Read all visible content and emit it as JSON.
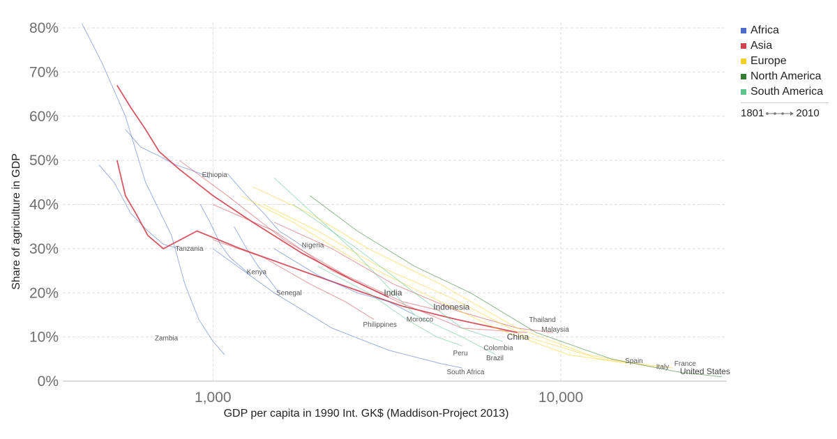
{
  "chart_data": {
    "type": "line",
    "xlabel": "GDP per capita in 1990 Int. GK$ (Maddison-Project 2013)",
    "ylabel": "Share of agriculture in GDP",
    "x_scale": "log",
    "xlim": [
      370,
      30000
    ],
    "ylim": [
      0,
      80
    ],
    "x_ticks": [
      1000,
      10000
    ],
    "x_tick_labels": [
      "1,000",
      "10,000"
    ],
    "y_ticks": [
      0,
      10,
      20,
      30,
      40,
      50,
      60,
      70,
      80
    ],
    "y_tick_labels": [
      "0%",
      "10%",
      "20%",
      "30%",
      "40%",
      "50%",
      "60%",
      "70%",
      "80%"
    ],
    "grid": true,
    "legend_position": "top-right",
    "time_range": {
      "start": "1801",
      "end": "2010"
    },
    "legend": [
      {
        "name": "Africa",
        "color": "#4c6cc8"
      },
      {
        "name": "Asia",
        "color": "#d0424f"
      },
      {
        "name": "Europe",
        "color": "#f4cf2a"
      },
      {
        "name": "North America",
        "color": "#2e7d32"
      },
      {
        "name": "South America",
        "color": "#5dc48c"
      }
    ],
    "series": [
      {
        "name": "Zambia",
        "continent": "Africa",
        "x": [
          420,
          480,
          560,
          640,
          760,
          830,
          910,
          1000,
          1080
        ],
        "y": [
          81,
          72,
          60,
          45,
          33,
          22,
          14,
          9,
          6
        ]
      },
      {
        "name": "Tanzania",
        "continent": "Africa",
        "x": [
          470,
          520,
          580,
          650,
          720,
          800
        ],
        "y": [
          49,
          45,
          38,
          34,
          31,
          30
        ]
      },
      {
        "name": "Ethiopia",
        "continent": "Africa",
        "x": [
          560,
          620,
          700,
          780,
          850,
          920,
          980
        ],
        "y": [
          57,
          53,
          51,
          49,
          48,
          47,
          46
        ]
      },
      {
        "name": "Kenya",
        "continent": "Africa",
        "x": [
          920,
          980,
          1050,
          1120,
          1200,
          1280
        ],
        "y": [
          40,
          36,
          31,
          28,
          26,
          24
        ]
      },
      {
        "name": "Nigeria",
        "continent": "Africa",
        "x": [
          1100,
          1250,
          1400,
          1550,
          1700,
          1850
        ],
        "y": [
          47,
          42,
          38,
          34,
          32,
          30
        ]
      },
      {
        "name": "Senegal",
        "continent": "Africa",
        "x": [
          1150,
          1250,
          1350,
          1450,
          1550
        ],
        "y": [
          35,
          30,
          26,
          23,
          20
        ]
      },
      {
        "name": "South Africa",
        "continent": "Africa",
        "x": [
          1000,
          1500,
          2200,
          3200,
          4500,
          5200
        ],
        "y": [
          30,
          20,
          12,
          7,
          4,
          3
        ]
      },
      {
        "name": "China",
        "continent": "Asia",
        "x": [
          530,
          560,
          600,
          650,
          720,
          900,
          1200,
          1800,
          2500,
          3500,
          5000,
          7500
        ],
        "y": [
          50,
          42,
          38,
          33,
          30,
          34,
          30,
          25,
          21,
          17,
          14,
          11
        ]
      },
      {
        "name": "India",
        "continent": "Asia",
        "x": [
          530,
          580,
          640,
          700,
          800,
          1000,
          1300,
          1800,
          2500,
          3200
        ],
        "y": [
          67,
          62,
          57,
          52,
          48,
          42,
          36,
          29,
          23,
          19
        ]
      },
      {
        "name": "Philippines",
        "continent": "Asia",
        "x": [
          1000,
          1400,
          1900,
          2400,
          2900
        ],
        "y": [
          32,
          28,
          22,
          18,
          14
        ]
      },
      {
        "name": "Indonesia",
        "continent": "Asia",
        "x": [
          800,
          1100,
          1600,
          2400,
          3500,
          4500
        ],
        "y": [
          50,
          42,
          32,
          24,
          18,
          16
        ]
      },
      {
        "name": "Malaysia",
        "continent": "Asia",
        "x": [
          1500,
          2200,
          3300,
          5000,
          7500,
          9500
        ],
        "y": [
          36,
          30,
          22,
          16,
          12,
          11
        ]
      },
      {
        "name": "Thailand",
        "continent": "Asia",
        "x": [
          1000,
          1500,
          2200,
          3400,
          5200,
          8000
        ],
        "y": [
          40,
          34,
          25,
          18,
          12,
          11
        ]
      },
      {
        "name": "Spain",
        "continent": "Europe",
        "x": [
          1200,
          1700,
          2500,
          4000,
          6500,
          10500,
          15500
        ],
        "y": [
          42,
          36,
          28,
          20,
          12,
          6,
          4
        ]
      },
      {
        "name": "Italy",
        "continent": "Europe",
        "x": [
          1300,
          1900,
          2800,
          4500,
          7500,
          12000,
          19000
        ],
        "y": [
          44,
          38,
          30,
          22,
          12,
          6,
          3
        ]
      },
      {
        "name": "France",
        "continent": "Europe",
        "x": [
          1400,
          2000,
          3000,
          4800,
          8000,
          13000,
          21000
        ],
        "y": [
          40,
          34,
          26,
          19,
          10,
          5,
          3
        ]
      },
      {
        "name": "United States",
        "continent": "North America",
        "x": [
          1900,
          2600,
          3800,
          5500,
          8500,
          14000,
          22000,
          29000
        ],
        "y": [
          42,
          34,
          26,
          20,
          11,
          5,
          2,
          1
        ]
      },
      {
        "name": "Morocco",
        "continent": "Africa",
        "x": [
          1500,
          2000,
          2600,
          3200,
          3800
        ],
        "y": [
          30,
          24,
          20,
          18,
          15
        ]
      },
      {
        "name": "Peru",
        "continent": "South America",
        "x": [
          2000,
          2800,
          3600,
          4400,
          5200
        ],
        "y": [
          26,
          20,
          14,
          10,
          8
        ]
      },
      {
        "name": "Brazil",
        "continent": "South America",
        "x": [
          1500,
          2500,
          3800,
          5200,
          6500
        ],
        "y": [
          46,
          30,
          15,
          10,
          6
        ]
      },
      {
        "name": "Colombia",
        "continent": "South America",
        "x": [
          1700,
          2600,
          3800,
          5200,
          6800
        ],
        "y": [
          40,
          30,
          20,
          12,
          9
        ]
      }
    ],
    "labels": [
      {
        "text": "Ethiopia",
        "x": 930,
        "y": 46.2
      },
      {
        "text": "Tanzania",
        "x": 780,
        "y": 29.5
      },
      {
        "text": "Kenya",
        "x": 1250,
        "y": 24.2
      },
      {
        "text": "Nigeria",
        "x": 1800,
        "y": 30.3
      },
      {
        "text": "Senegal",
        "x": 1520,
        "y": 19.5
      },
      {
        "text": "Zambia",
        "x": 680,
        "y": 9.2
      },
      {
        "text": "India",
        "x": 3100,
        "y": 19.4
      },
      {
        "text": "Indonesia",
        "x": 4300,
        "y": 16.2
      },
      {
        "text": "Morocco",
        "x": 3600,
        "y": 13.5
      },
      {
        "text": "Philippines",
        "x": 2700,
        "y": 12.3
      },
      {
        "text": "Thailand",
        "x": 8100,
        "y": 13.4
      },
      {
        "text": "Malaysia",
        "x": 8800,
        "y": 11.2
      },
      {
        "text": "China",
        "x": 7000,
        "y": 9.4
      },
      {
        "text": "Colombia",
        "x": 6000,
        "y": 7.0
      },
      {
        "text": "Peru",
        "x": 4900,
        "y": 5.8
      },
      {
        "text": "Brazil",
        "x": 6100,
        "y": 4.7
      },
      {
        "text": "South Africa",
        "x": 4700,
        "y": 1.6
      },
      {
        "text": "Spain",
        "x": 15300,
        "y": 4.1
      },
      {
        "text": "Italy",
        "x": 18800,
        "y": 2.8
      },
      {
        "text": "France",
        "x": 21200,
        "y": 3.5
      },
      {
        "text": "United States",
        "x": 22000,
        "y": 1.6
      }
    ]
  }
}
